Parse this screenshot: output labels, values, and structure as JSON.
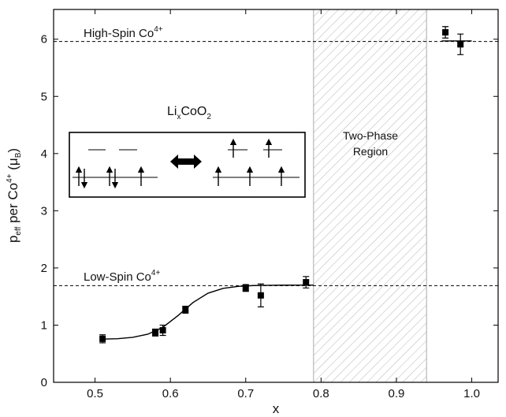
{
  "chart_data": {
    "type": "scatter",
    "xlabel": "x",
    "ylabel": [
      "p",
      "eff",
      " per Co",
      "4+",
      " (μ",
      "B",
      ")"
    ],
    "xlim": [
      0.445,
      1.035
    ],
    "ylim": [
      0,
      6.52
    ],
    "xticks": [
      0.5,
      0.6,
      0.7,
      0.8,
      0.9,
      {
        "value": 1,
        "label": "1.0"
      }
    ],
    "yticks": [
      0,
      1,
      2,
      3,
      4,
      5,
      6
    ],
    "color": "#000000",
    "points": {
      "x": [
        0.51,
        0.58,
        0.59,
        0.62,
        0.7,
        0.72,
        0.78,
        0.965,
        0.985
      ],
      "values": [
        0.76,
        0.87,
        0.91,
        1.27,
        1.65,
        1.52,
        1.75,
        6.12,
        5.91
      ],
      "errors": [
        0.07,
        0.06,
        0.09,
        0.06,
        0.06,
        0.2,
        0.1,
        0.1,
        0.18
      ]
    },
    "fit": {
      "x": [
        0.51,
        0.53,
        0.55,
        0.57,
        0.59,
        0.61,
        0.63,
        0.65,
        0.67,
        0.69,
        0.71,
        0.73,
        0.75,
        0.77,
        0.79,
        null,
        0.96,
        1.0
      ],
      "values": [
        0.755,
        0.763,
        0.786,
        0.841,
        0.962,
        1.166,
        1.395,
        1.559,
        1.643,
        1.678,
        1.692,
        1.697,
        1.699,
        1.7,
        1.7,
        null,
        5.97,
        5.97
      ]
    },
    "reference_lines": [
      {
        "value": 5.96,
        "label": [
          "High-Spin Co",
          "4+"
        ]
      },
      {
        "value": 1.69,
        "label": [
          "Low-Spin Co",
          "4+"
        ]
      }
    ],
    "region": {
      "x": [
        0.79,
        0.94
      ],
      "label": [
        "Two-Phase",
        "Region"
      ],
      "color": "#aaaaaa"
    },
    "inset_label": [
      "Li",
      "x",
      "CoO",
      "2"
    ]
  }
}
